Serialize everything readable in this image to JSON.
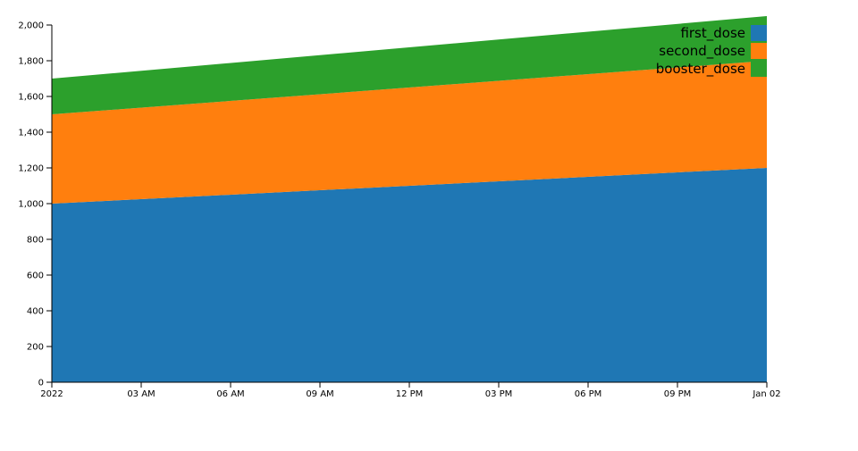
{
  "chart_data": {
    "type": "area",
    "stacked": true,
    "x": [
      "2022-01-01T00:00",
      "2022-01-02T00:00"
    ],
    "series": [
      {
        "name": "first_dose",
        "values": [
          1000,
          1200
        ],
        "color": "#1f77b4"
      },
      {
        "name": "second_dose",
        "values": [
          500,
          600
        ],
        "color": "#ff7f0e"
      },
      {
        "name": "booster_dose",
        "values": [
          200,
          250
        ],
        "color": "#2ca02c"
      }
    ],
    "xlim": [
      "2022-01-01T00:00",
      "2022-01-02T00:00"
    ],
    "ylim": [
      0,
      2050
    ],
    "x_ticks": [
      {
        "value": "2022-01-01T00:00",
        "label": "2022"
      },
      {
        "value": "2022-01-01T03:00",
        "label": "03 AM"
      },
      {
        "value": "2022-01-01T06:00",
        "label": "06 AM"
      },
      {
        "value": "2022-01-01T09:00",
        "label": "09 AM"
      },
      {
        "value": "2022-01-01T12:00",
        "label": "12 PM"
      },
      {
        "value": "2022-01-01T15:00",
        "label": "03 PM"
      },
      {
        "value": "2022-01-01T18:00",
        "label": "06 PM"
      },
      {
        "value": "2022-01-01T21:00",
        "label": "09 PM"
      },
      {
        "value": "2022-01-02T00:00",
        "label": "Jan 02"
      }
    ],
    "y_ticks": [
      {
        "value": 0,
        "label": "0"
      },
      {
        "value": 200,
        "label": "200"
      },
      {
        "value": 400,
        "label": "400"
      },
      {
        "value": 600,
        "label": "600"
      },
      {
        "value": 800,
        "label": "800"
      },
      {
        "value": 1000,
        "label": "1,000"
      },
      {
        "value": 1200,
        "label": "1,200"
      },
      {
        "value": 1400,
        "label": "1,400"
      },
      {
        "value": 1600,
        "label": "1,600"
      },
      {
        "value": 1800,
        "label": "1,800"
      },
      {
        "value": 2000,
        "label": "2,000"
      }
    ],
    "title": "",
    "xlabel": "",
    "ylabel": "",
    "legend_position": "top-right",
    "grid": false
  }
}
